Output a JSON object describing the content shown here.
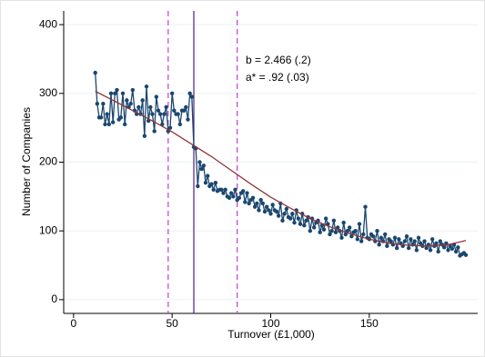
{
  "chart_data": {
    "type": "line",
    "xlabel": "Turnover (£1,000)",
    "ylabel": "Number of Companies",
    "xlim": [
      -5,
      205
    ],
    "ylim": [
      -20,
      420
    ],
    "xticks": [
      0,
      50,
      100,
      150
    ],
    "yticks": [
      0,
      100,
      200,
      300,
      400
    ],
    "grid": true,
    "series": [
      {
        "color": "#1a476f",
        "markers": true,
        "x": [
          11,
          12,
          13,
          14,
          15,
          16,
          17,
          18,
          19,
          20,
          21,
          22,
          23,
          24,
          25,
          26,
          27,
          28,
          29,
          30,
          31,
          32,
          33,
          34,
          35,
          36,
          37,
          38,
          39,
          40,
          41,
          42,
          43,
          44,
          45,
          46,
          47,
          48,
          49,
          50,
          51,
          52,
          53,
          54,
          55,
          56,
          57,
          58,
          59,
          60,
          61,
          62,
          63,
          64,
          65,
          66,
          67,
          68,
          69,
          70,
          71,
          72,
          73,
          74,
          75,
          76,
          77,
          78,
          79,
          80,
          81,
          82,
          83,
          84,
          85,
          86,
          87,
          88,
          89,
          90,
          91,
          92,
          93,
          94,
          95,
          96,
          97,
          98,
          99,
          100,
          101,
          102,
          103,
          104,
          105,
          106,
          107,
          108,
          109,
          110,
          111,
          112,
          113,
          114,
          115,
          116,
          117,
          118,
          119,
          120,
          121,
          122,
          123,
          124,
          125,
          126,
          127,
          128,
          129,
          130,
          131,
          132,
          133,
          134,
          135,
          136,
          137,
          138,
          139,
          140,
          141,
          142,
          143,
          144,
          145,
          146,
          147,
          148,
          149,
          150,
          151,
          152,
          153,
          154,
          155,
          156,
          157,
          158,
          159,
          160,
          161,
          162,
          163,
          164,
          165,
          166,
          167,
          168,
          169,
          170,
          171,
          172,
          173,
          174,
          175,
          176,
          177,
          178,
          179,
          180,
          181,
          182,
          183,
          184,
          185,
          186,
          187,
          188,
          189,
          190,
          191,
          192,
          193,
          194,
          195,
          196,
          197,
          198,
          199
        ],
        "values": [
          330,
          285,
          265,
          265,
          285,
          255,
          270,
          255,
          300,
          258,
          300,
          305,
          262,
          265,
          300,
          255,
          290,
          280,
          285,
          305,
          275,
          270,
          280,
          270,
          290,
          238,
          310,
          260,
          280,
          270,
          245,
          295,
          275,
          270,
          255,
          270,
          280,
          245,
          250,
          300,
          275,
          270,
          270,
          255,
          275,
          275,
          280,
          262,
          300,
          295,
          222,
          220,
          165,
          200,
          190,
          195,
          170,
          180,
          165,
          168,
          160,
          170,
          158,
          160,
          160,
          155,
          160,
          150,
          148,
          155,
          150,
          160,
          145,
          148,
          155,
          158,
          142,
          155,
          140,
          145,
          148,
          135,
          140,
          130,
          145,
          140,
          128,
          135,
          130,
          125,
          138,
          130,
          128,
          122,
          140,
          115,
          125,
          132,
          120,
          118,
          125,
          112,
          130,
          118,
          110,
          125,
          108,
          115,
          120,
          100,
          118,
          105,
          112,
          115,
          98,
          108,
          102,
          118,
          110,
          95,
          100,
          115,
          98,
          105,
          100,
          90,
          112,
          95,
          100,
          105,
          92,
          98,
          100,
          88,
          110,
          85,
          95,
          135,
          90,
          88,
          95,
          92,
          85,
          100,
          80,
          90,
          85,
          95,
          78,
          88,
          85,
          80,
          90,
          75,
          88,
          82,
          78,
          85,
          92,
          75,
          88,
          80,
          85,
          72,
          90,
          82,
          78,
          85,
          75,
          80,
          72,
          88,
          78,
          82,
          70,
          85,
          80,
          76,
          82,
          72,
          78,
          74,
          80,
          70,
          76,
          64,
          66,
          68,
          65
        ]
      },
      {
        "color": "#90353b",
        "markers": false,
        "x": [
          11,
          20,
          30,
          40,
          50,
          60,
          70,
          80,
          90,
          100,
          110,
          120,
          130,
          140,
          150,
          160,
          170,
          180,
          190,
          199
        ],
        "values": [
          303,
          290,
          275,
          260,
          244,
          226,
          208,
          188,
          168,
          149,
          133,
          118,
          106,
          96,
          88,
          82,
          79,
          78,
          80,
          86
        ]
      }
    ],
    "vlines": [
      {
        "value": 48,
        "style": "dashed",
        "color": "#c040d0"
      },
      {
        "value": 61,
        "style": "solid",
        "color": "#50207a"
      },
      {
        "value": 83,
        "style": "dashed",
        "color": "#c040d0"
      }
    ],
    "annotations": [
      {
        "text": "b = 2.466 (.2)",
        "color": "#1a1aff"
      },
      {
        "text": "a* = .92 (.03)",
        "color": "#e0208a"
      }
    ]
  }
}
